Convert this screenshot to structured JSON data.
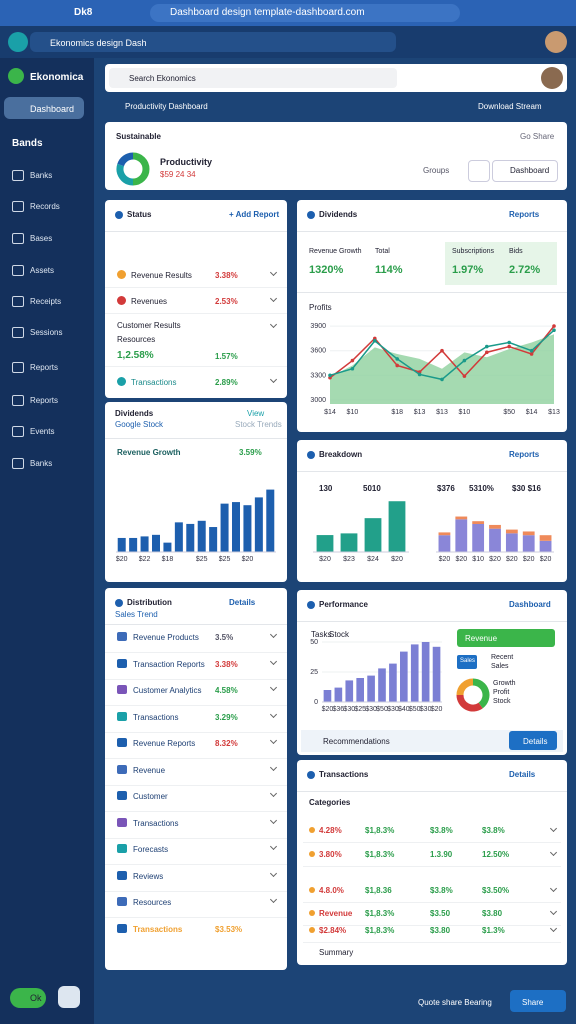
{
  "browser": {
    "tab": "Dk8",
    "url": "Dashboard design template-dashboard.com"
  },
  "app": {
    "title": "Ekonomics design Dash"
  },
  "sidebar": {
    "brand": "Ekonomica",
    "active": "Dashboard",
    "section": "Bands",
    "items": [
      "Banks",
      "Records",
      "Bases",
      "Assets",
      "Receipts",
      "Sessions",
      "Reports",
      "Reports",
      "Events",
      "Banks"
    ],
    "footer": "Ok"
  },
  "search": {
    "placeholder": "Search Ekonomics"
  },
  "breadcrumb": "Productivity Dashboard",
  "download": "Download Stream",
  "header": {
    "label": "Sustainable",
    "title": "Productivity",
    "subtitle": "$59 24 34",
    "note": "Groups",
    "button": "Dashboard",
    "link": "Go Share"
  },
  "status": {
    "title": "Status",
    "link": "+ Add Report",
    "rows": [
      {
        "label": "Revenue Results",
        "value": "3.38%",
        "color": "#d23a3a"
      },
      {
        "label": "Revenues",
        "value": "2.53%",
        "color": "#d23a3a"
      }
    ],
    "block": {
      "label": "Customer Results",
      "sub": "Resources",
      "value": "1,2.58%",
      "change": "1.57%"
    },
    "last": {
      "label": "Transactions",
      "value": "2.89%",
      "color": "#2a9d4a"
    }
  },
  "dividends": {
    "title": "Dividends",
    "sub": "Google Stock",
    "link": "View",
    "sublink": "Stock Trends",
    "chart_title": "Revenue Growth",
    "chart_value": "3.59%"
  },
  "overview": {
    "title": "Dividends",
    "link": "Reports",
    "stats": [
      {
        "label": "Revenue Growth",
        "value": "1320%"
      },
      {
        "label": "Total",
        "value": "114%"
      },
      {
        "label": "Subscriptions",
        "value": "1.97%"
      },
      {
        "label": "Bids",
        "value": "2.72%"
      }
    ],
    "chart_label": "Profits"
  },
  "breakdown": {
    "title": "Breakdown",
    "link": "Reports",
    "labels": [
      "130",
      "5010",
      "$376",
      "5310%",
      "$30 $16"
    ]
  },
  "performance": {
    "title": "Performance",
    "link": "Dashboard",
    "labels": [
      "Tasks",
      "Stock"
    ],
    "bar": "Revenue",
    "chip": "Sales",
    "side": [
      "Recent",
      "Sales"
    ],
    "legend": [
      "Growth",
      "Profit",
      "Stock"
    ],
    "footer": "Recommendations",
    "button": "Details"
  },
  "transactions": {
    "title": "Transactions",
    "link": "Details",
    "header": "Categories",
    "rows": [
      [
        "4.28%",
        "$1,8.3%",
        "$3.8%",
        "$3.8%"
      ],
      [
        "3.80%",
        "$1,8.3%",
        "1.3.90",
        "12.50%"
      ],
      [
        "4.8.0%",
        "$1,8.36",
        "$3.8%",
        "$3.50%"
      ],
      [
        "Revenue",
        "$1,8.3%",
        "$3.50",
        "$3.80"
      ],
      [
        "$2.84%",
        "$1,8.3%",
        "$3.80",
        "$1.3%"
      ]
    ],
    "footer": "Summary"
  },
  "distribution": {
    "title": "Distribution",
    "sub": "Sales Trend",
    "link": "Details",
    "rows": [
      {
        "label": "Revenue Products",
        "value": "3.5%"
      },
      {
        "label": "Transaction Reports",
        "value": "3.38%"
      },
      {
        "label": "Customer Analytics",
        "value": "4.58%"
      },
      {
        "label": "Transactions",
        "value": "3.29%"
      },
      {
        "label": "Revenue Reports",
        "value": "8.32%"
      },
      {
        "label": "Revenue"
      },
      {
        "label": "Customer"
      },
      {
        "label": "Transactions"
      },
      {
        "label": "Forecasts"
      },
      {
        "label": "Reviews"
      },
      {
        "label": "Resources"
      },
      {
        "label": "Transactions",
        "value": "$3.53%"
      }
    ]
  },
  "footer": {
    "text": "Quote share Bearing",
    "button": "Share"
  },
  "chart_data": [
    {
      "type": "pie",
      "values": [
        50,
        30,
        20
      ],
      "colors": [
        "#3bb54a",
        "#1aa0a8",
        "#1d5fae"
      ]
    },
    {
      "type": "line",
      "categories": [
        "$14",
        "$10",
        null,
        "$18",
        "$13",
        "$13",
        "$10",
        null,
        "$50",
        "$14",
        "$13"
      ],
      "ylim": [
        2950,
        3950
      ],
      "yticks": [
        3000,
        3300,
        3600,
        3900
      ],
      "series": [
        {
          "color": "#8fd19e",
          "area": true,
          "values": [
            3280,
            3420,
            3640,
            3560,
            3500,
            3380,
            3580,
            3520,
            3620,
            3700,
            3800
          ]
        },
        {
          "color": "#d23a3a",
          "values": [
            3270,
            3480,
            3750,
            3420,
            3340,
            3600,
            3290,
            3580,
            3650,
            3560,
            3900
          ]
        },
        {
          "color": "#1a9a8a",
          "values": [
            3300,
            3380,
            3720,
            3500,
            3310,
            3250,
            3480,
            3650,
            3700,
            3600,
            3850
          ]
        }
      ]
    },
    {
      "type": "bar",
      "categories": [
        "$20",
        null,
        "$22",
        null,
        "$18",
        null,
        null,
        "$25",
        null,
        "$25",
        null,
        "$20",
        null,
        null
      ],
      "ylim": [
        0,
        100
      ],
      "values": [
        18,
        18,
        20,
        22,
        12,
        38,
        36,
        40,
        32,
        62,
        64,
        60,
        70,
        80
      ],
      "color": "#1d5fae"
    },
    {
      "type": "bar",
      "categories": [
        "$20",
        "$23",
        "$24",
        "$20"
      ],
      "ylim": [
        0,
        65
      ],
      "values": [
        20,
        22,
        40,
        60
      ],
      "color": "#22a08a"
    },
    {
      "type": "bar",
      "categories": [
        "$20",
        "$20",
        "$10",
        "$20",
        "$20",
        "$20",
        "$20"
      ],
      "ylim": [
        0,
        45
      ],
      "series": [
        {
          "color": "#8a86d8",
          "values": [
            18,
            35,
            30,
            25,
            20,
            18,
            12
          ]
        },
        {
          "color": "#ef8a5a",
          "values": [
            3,
            3,
            3,
            4,
            4,
            4,
            6
          ]
        }
      ]
    },
    {
      "type": "bar",
      "categories": [
        "$20",
        "$36",
        "$30",
        "$25",
        "$30",
        "$50",
        "$30",
        "$40",
        "$50",
        "$30",
        "$20"
      ],
      "ylim": [
        0,
        55
      ],
      "yticks": [
        0,
        25,
        50
      ],
      "values": [
        10,
        12,
        18,
        20,
        22,
        28,
        32,
        42,
        48,
        50,
        46
      ],
      "color": "#7b7fd4"
    },
    {
      "type": "pie",
      "values": [
        40,
        35,
        25
      ],
      "colors": [
        "#3bb54a",
        "#d23a3a",
        "#f0a030"
      ]
    }
  ]
}
